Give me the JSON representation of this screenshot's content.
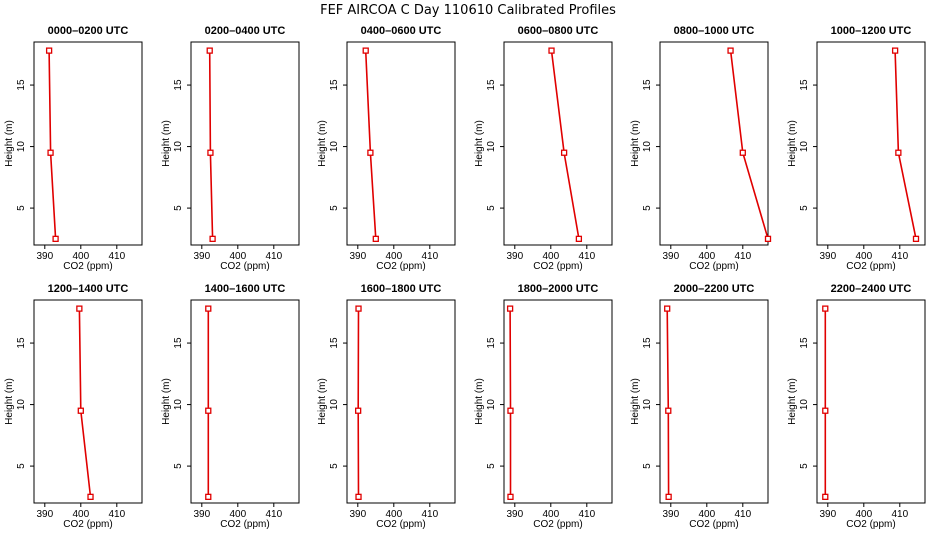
{
  "title": "FEF AIRCOA C  Day 110610  Calibrated Profiles",
  "colors": {
    "profile": "#e00000",
    "axis": "#000000"
  },
  "chart_data": {
    "type": "line",
    "xlabel": "CO2 (ppm)",
    "ylabel": "Height (m)",
    "xlim": [
      387,
      417
    ],
    "ylim": [
      2.0,
      18.5
    ],
    "xticks": [
      390,
      400,
      410
    ],
    "yticks": [
      5,
      10,
      15
    ],
    "grid": false,
    "heights": [
      17.8,
      9.5,
      2.5
    ],
    "panels": [
      {
        "title": "0000–0200 UTC",
        "co2": [
          391.2,
          391.6,
          393.0
        ]
      },
      {
        "title": "0200–0400 UTC",
        "co2": [
          392.2,
          392.4,
          393.0
        ]
      },
      {
        "title": "0400–0600 UTC",
        "co2": [
          392.2,
          393.5,
          395.0
        ]
      },
      {
        "title": "0600–0800 UTC",
        "co2": [
          400.2,
          403.7,
          407.8
        ]
      },
      {
        "title": "0800–1000 UTC",
        "co2": [
          406.6,
          410.0,
          417.0
        ]
      },
      {
        "title": "1000–1200 UTC",
        "co2": [
          408.7,
          409.6,
          414.5
        ]
      },
      {
        "title": "1200–1400 UTC",
        "co2": [
          399.6,
          400.0,
          402.7
        ]
      },
      {
        "title": "1400–1600 UTC",
        "co2": [
          391.8,
          391.8,
          391.8
        ]
      },
      {
        "title": "1600–1800 UTC",
        "co2": [
          390.2,
          390.1,
          390.2
        ]
      },
      {
        "title": "1800–2000 UTC",
        "co2": [
          388.7,
          388.8,
          388.8
        ]
      },
      {
        "title": "2000–2200 UTC",
        "co2": [
          389.0,
          389.3,
          389.4
        ]
      },
      {
        "title": "2200–2400 UTC",
        "co2": [
          389.3,
          389.3,
          389.3
        ]
      }
    ]
  }
}
